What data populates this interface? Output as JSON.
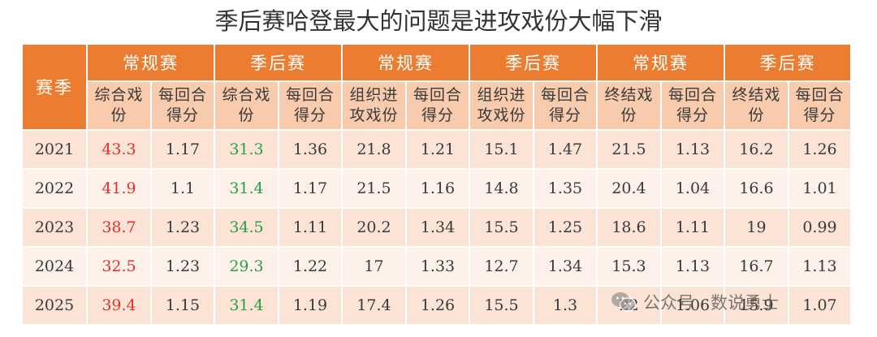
{
  "title": "季后赛哈登最大的问题是进攻戏份大幅下滑",
  "chart_data": {
    "type": "table",
    "title": "季后赛哈登最大的问题是进攻戏份大幅下滑",
    "header_groups": [
      "赛季",
      "常规赛",
      "季后赛",
      "常规赛",
      "季后赛",
      "常规赛",
      "季后赛"
    ],
    "columns": [
      [
        "综合戏",
        "份"
      ],
      [
        "每回合",
        "得分"
      ],
      [
        "综合戏",
        "份"
      ],
      [
        "每回合",
        "得分"
      ],
      [
        "组织进",
        "攻戏份"
      ],
      [
        "每回合",
        "得分"
      ],
      [
        "组织进",
        "攻戏份"
      ],
      [
        "每回合",
        "得分"
      ],
      [
        "终结戏",
        "份"
      ],
      [
        "每回合",
        "得分"
      ],
      [
        "终结戏",
        "份"
      ],
      [
        "每回合",
        "得分"
      ]
    ],
    "rows": [
      {
        "season": "2021",
        "values": [
          "43.3",
          "1.17",
          "31.3",
          "1.36",
          "21.8",
          "1.21",
          "15.1",
          "1.47",
          "21.5",
          "1.13",
          "16.2",
          "1.26"
        ]
      },
      {
        "season": "2022",
        "values": [
          "41.9",
          "1.1",
          "31.4",
          "1.17",
          "21.5",
          "1.16",
          "14.8",
          "1.35",
          "20.4",
          "1.04",
          "16.6",
          "1.01"
        ]
      },
      {
        "season": "2023",
        "values": [
          "38.7",
          "1.23",
          "34.5",
          "1.11",
          "20.2",
          "1.34",
          "15.5",
          "1.25",
          "18.6",
          "1.11",
          "19",
          "0.99"
        ]
      },
      {
        "season": "2024",
        "values": [
          "32.5",
          "1.23",
          "29.3",
          "1.22",
          "17",
          "1.33",
          "12.7",
          "1.34",
          "15.3",
          "1.13",
          "16.7",
          "1.13"
        ]
      },
      {
        "season": "2025",
        "values": [
          "39.4",
          "1.15",
          "31.4",
          "1.19",
          "17.4",
          "1.26",
          "15.5",
          "1.3",
          "22",
          "1.06",
          "15.9",
          "1.07"
        ]
      }
    ]
  },
  "colors": {
    "header": "#ec7c30",
    "subheader": "#f8cbad",
    "row_a": "#fbe4d6",
    "row_b": "#fdf1ea",
    "regular_highlight": "#e8302b",
    "playoff_highlight": "#27a046"
  },
  "watermark": {
    "icon": "wechat-icon",
    "text": "公众号 · 数说勇士"
  }
}
